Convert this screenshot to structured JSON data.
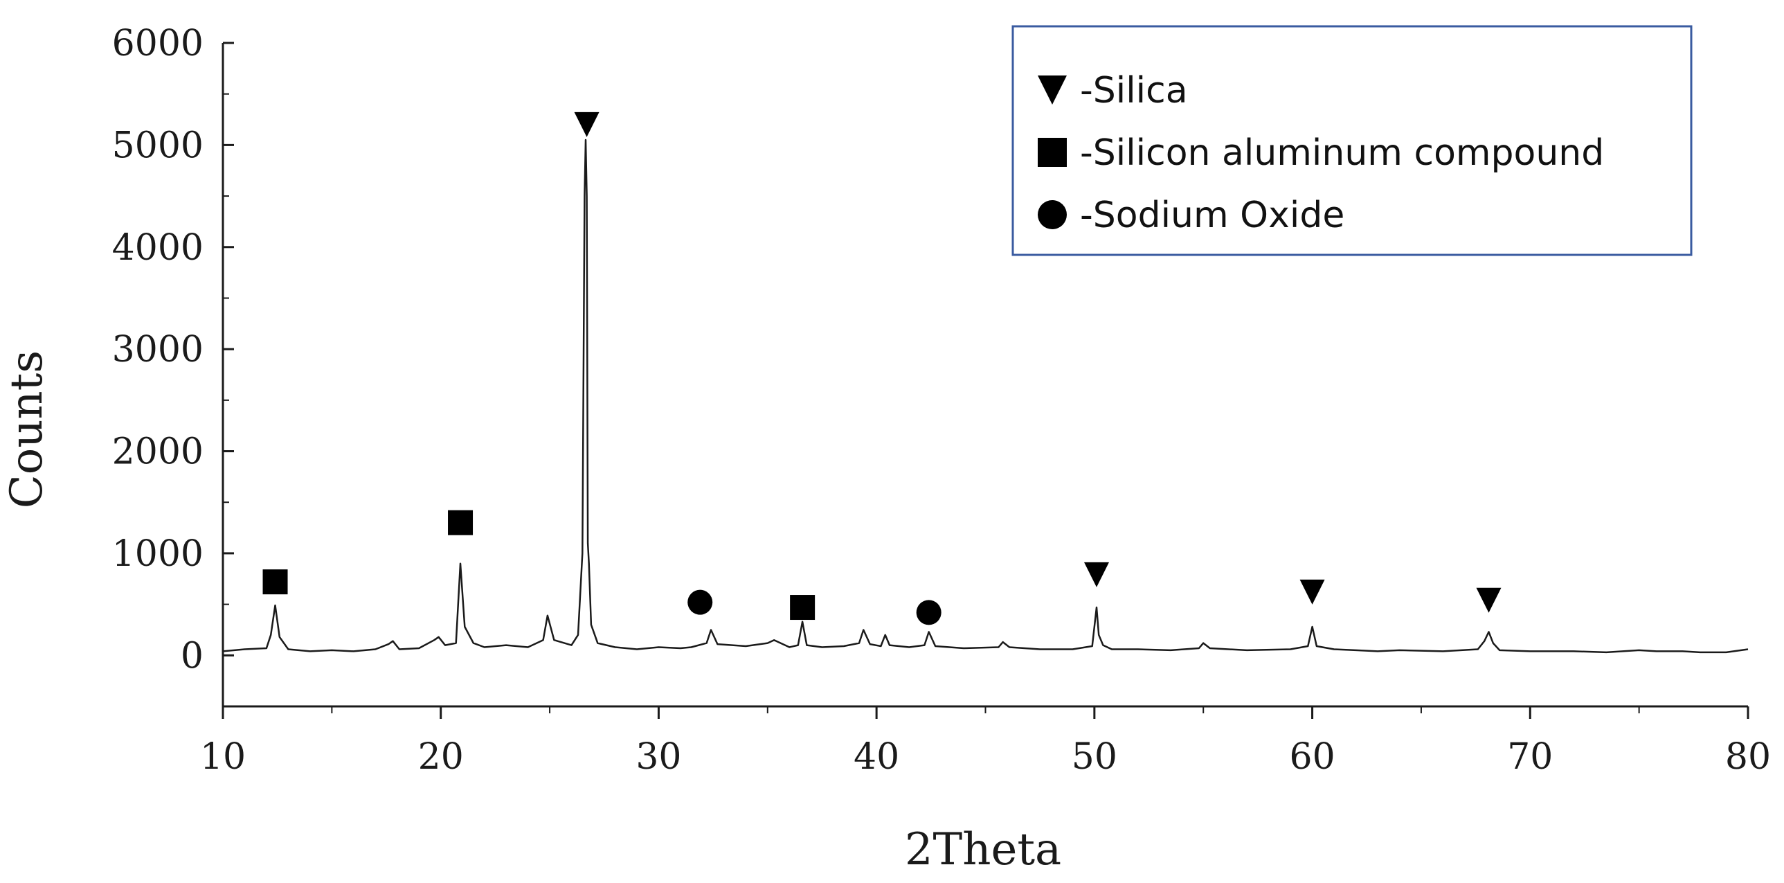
{
  "chart_data": {
    "type": "line",
    "xlabel": "2Theta",
    "ylabel": "Counts",
    "xlim": [
      10,
      80
    ],
    "ylim": [
      -500,
      6000
    ],
    "xticks": [
      10,
      20,
      30,
      40,
      50,
      60,
      70,
      80
    ],
    "yticks": [
      0,
      1000,
      2000,
      3000,
      4000,
      5000,
      6000
    ],
    "grid": false,
    "legend_position": "top-right",
    "line_color": "#1a1a1a",
    "legend": [
      {
        "marker": "triangle-down",
        "label": "-Silica"
      },
      {
        "marker": "square",
        "label": "-Silicon aluminum compound"
      },
      {
        "marker": "circle",
        "label": "-Sodium Oxide"
      }
    ],
    "series": [
      {
        "x": [
          10,
          11,
          12,
          12.2,
          12.4,
          12.6,
          13,
          14,
          15,
          16,
          17,
          17.6,
          17.8,
          18.1,
          19,
          19.7,
          19.9,
          20.2,
          20.7,
          20.9,
          21.1,
          21.5,
          22,
          23,
          24,
          24.7,
          24.9,
          25.2,
          26,
          26.3,
          26.5,
          26.6,
          26.65,
          26.7,
          26.75,
          26.8,
          26.9,
          27.2,
          28,
          29,
          30,
          31,
          31.5,
          32.2,
          32.4,
          32.7,
          34,
          35,
          35.3,
          36,
          36.4,
          36.6,
          36.8,
          37.5,
          38.5,
          39.2,
          39.4,
          39.7,
          40.2,
          40.4,
          40.6,
          41.5,
          42.2,
          42.4,
          42.7,
          44,
          45.6,
          45.8,
          46.1,
          47.5,
          49,
          49.9,
          50.1,
          50.2,
          50.4,
          50.8,
          52,
          53.5,
          54.8,
          55,
          55.3,
          57,
          59,
          59.8,
          60,
          60.2,
          61,
          62,
          63,
          64,
          66,
          67.6,
          67.9,
          68.1,
          68.3,
          68.6,
          70,
          72,
          73.5,
          75,
          75.8,
          77,
          77.8,
          79,
          80
        ],
        "y": [
          40,
          60,
          70,
          200,
          490,
          180,
          60,
          40,
          50,
          40,
          60,
          110,
          140,
          60,
          70,
          150,
          180,
          100,
          120,
          900,
          280,
          120,
          80,
          100,
          80,
          150,
          390,
          150,
          100,
          200,
          1000,
          4500,
          5050,
          4500,
          1100,
          900,
          300,
          120,
          80,
          60,
          80,
          70,
          80,
          120,
          250,
          110,
          90,
          120,
          150,
          80,
          100,
          330,
          100,
          80,
          90,
          120,
          250,
          110,
          90,
          200,
          100,
          80,
          100,
          230,
          90,
          70,
          80,
          130,
          80,
          60,
          60,
          90,
          470,
          200,
          100,
          60,
          60,
          50,
          70,
          120,
          70,
          50,
          60,
          90,
          280,
          90,
          60,
          50,
          40,
          50,
          40,
          60,
          140,
          230,
          120,
          50,
          40,
          40,
          30,
          50,
          40,
          40,
          30,
          30,
          60
        ]
      }
    ],
    "annotations": [
      {
        "marker": "triangle-down",
        "x": 26.7,
        "y": 5200
      },
      {
        "marker": "square",
        "x": 12.4,
        "y": 720
      },
      {
        "marker": "square",
        "x": 20.9,
        "y": 1300
      },
      {
        "marker": "circle",
        "x": 31.9,
        "y": 520
      },
      {
        "marker": "square",
        "x": 36.6,
        "y": 470
      },
      {
        "marker": "circle",
        "x": 42.4,
        "y": 420
      },
      {
        "marker": "triangle-down",
        "x": 50.1,
        "y": 790
      },
      {
        "marker": "triangle-down",
        "x": 60,
        "y": 620
      },
      {
        "marker": "triangle-down",
        "x": 68.1,
        "y": 540
      }
    ]
  }
}
